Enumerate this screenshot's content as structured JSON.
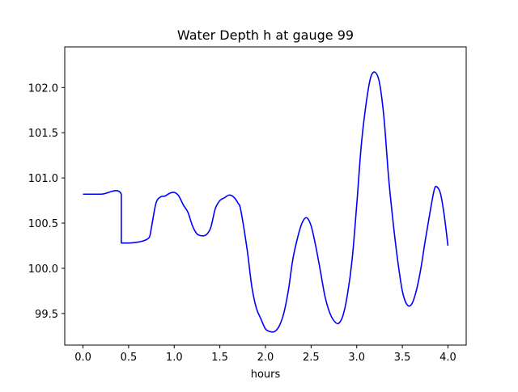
{
  "chart_data": {
    "type": "line",
    "title": "Water Depth h at gauge 99",
    "xlabel": "hours",
    "ylabel": "",
    "xlim": [
      -0.2,
      4.2
    ],
    "ylim": [
      99.15,
      102.45
    ],
    "xticks": [
      0.0,
      0.5,
      1.0,
      1.5,
      2.0,
      2.5,
      3.0,
      3.5,
      4.0
    ],
    "xtick_labels": [
      "0.0",
      "0.5",
      "1.0",
      "1.5",
      "2.0",
      "2.5",
      "3.0",
      "3.5",
      "4.0"
    ],
    "yticks": [
      99.5,
      100.0,
      100.5,
      101.0,
      101.5,
      102.0
    ],
    "ytick_labels": [
      "99.5",
      "100.0",
      "100.5",
      "101.0",
      "101.5",
      "102.0"
    ],
    "grid": false,
    "legend": "none",
    "series": [
      {
        "color": "#0000ff",
        "x": [
          0.0,
          0.2,
          0.42,
          0.42,
          0.5,
          0.6,
          0.65,
          0.7,
          0.73,
          0.75,
          0.8,
          0.85,
          0.9,
          0.95,
          1.0,
          1.05,
          1.1,
          1.15,
          1.2,
          1.25,
          1.3,
          1.35,
          1.4,
          1.45,
          1.5,
          1.55,
          1.6,
          1.65,
          1.7,
          1.73,
          1.8,
          1.85,
          1.9,
          1.95,
          2.0,
          2.05,
          2.1,
          2.15,
          2.2,
          2.25,
          2.3,
          2.35,
          2.4,
          2.45,
          2.5,
          2.55,
          2.6,
          2.65,
          2.7,
          2.75,
          2.8,
          2.85,
          2.9,
          2.95,
          3.0,
          3.05,
          3.1,
          3.15,
          3.2,
          3.25,
          3.3,
          3.35,
          3.4,
          3.45,
          3.5,
          3.55,
          3.6,
          3.65,
          3.7,
          3.75,
          3.8,
          3.85,
          3.88,
          3.92,
          3.96,
          4.0
        ],
        "y": [
          100.82,
          100.82,
          100.82,
          100.28,
          100.28,
          100.29,
          100.3,
          100.32,
          100.35,
          100.45,
          100.72,
          100.79,
          100.8,
          100.83,
          100.84,
          100.8,
          100.7,
          100.62,
          100.47,
          100.38,
          100.36,
          100.37,
          100.45,
          100.66,
          100.75,
          100.78,
          100.81,
          100.79,
          100.72,
          100.64,
          100.2,
          99.8,
          99.56,
          99.44,
          99.33,
          99.3,
          99.3,
          99.36,
          99.5,
          99.75,
          100.1,
          100.33,
          100.5,
          100.56,
          100.47,
          100.25,
          99.98,
          99.7,
          99.52,
          99.42,
          99.39,
          99.48,
          99.72,
          100.1,
          100.7,
          101.36,
          101.8,
          102.1,
          102.17,
          102.05,
          101.65,
          101.0,
          100.5,
          100.08,
          99.75,
          99.6,
          99.6,
          99.74,
          99.98,
          100.3,
          100.6,
          100.87,
          100.9,
          100.82,
          100.58,
          100.25
        ]
      }
    ]
  }
}
